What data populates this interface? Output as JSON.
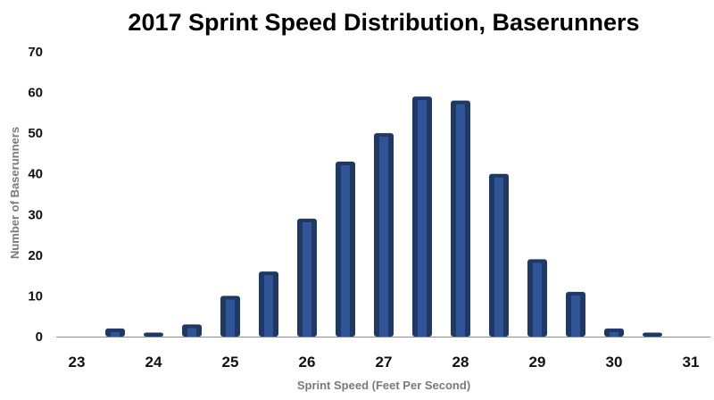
{
  "chart_data": {
    "type": "bar",
    "title": "2017 Sprint Speed Distribution, Baserunners",
    "xlabel": "Sprint Speed (Feet Per Second)",
    "ylabel": "Number of Baserunners",
    "x_ticks": [
      "23",
      "24",
      "25",
      "26",
      "27",
      "28",
      "29",
      "30",
      "31"
    ],
    "y_ticks": [
      "0",
      "10",
      "20",
      "30",
      "40",
      "50",
      "60",
      "70"
    ],
    "xlim": [
      23,
      31
    ],
    "ylim": [
      0,
      70
    ],
    "x": [
      23.5,
      24,
      24.5,
      25,
      25.5,
      26,
      26.5,
      27,
      27.5,
      28,
      28.5,
      29,
      29.5,
      30,
      30.5
    ],
    "values": [
      2,
      1,
      3,
      10,
      16,
      29,
      43,
      50,
      59,
      58,
      40,
      19,
      11,
      2,
      1
    ],
    "grid": false,
    "legend": "none",
    "bar_color": "#1f3864",
    "bar_highlight": "#2f5597"
  }
}
